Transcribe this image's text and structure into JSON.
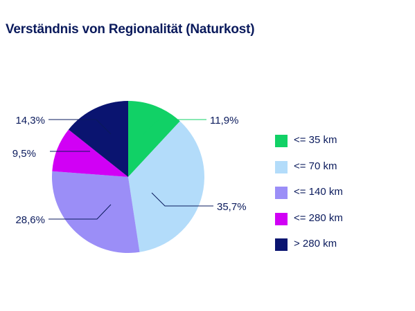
{
  "chart_data": {
    "type": "pie",
    "title": "Verständnis von Regionalität (Naturkost)",
    "categories": [
      "<= 35 km",
      "<= 70 km",
      "<= 140 km",
      "<= 280 km",
      "> 280 km"
    ],
    "values": [
      11.9,
      35.7,
      28.6,
      9.5,
      14.3
    ],
    "value_labels": [
      "11,9%",
      "35,7%",
      "28,6%",
      "9,5%",
      "14,3%"
    ],
    "colors": [
      "#11d166",
      "#b3dcfa",
      "#9b8ef7",
      "#d100f5",
      "#0a1470"
    ],
    "start_angle": "12 o'clock",
    "direction": "clockwise",
    "legend_position": "right"
  }
}
